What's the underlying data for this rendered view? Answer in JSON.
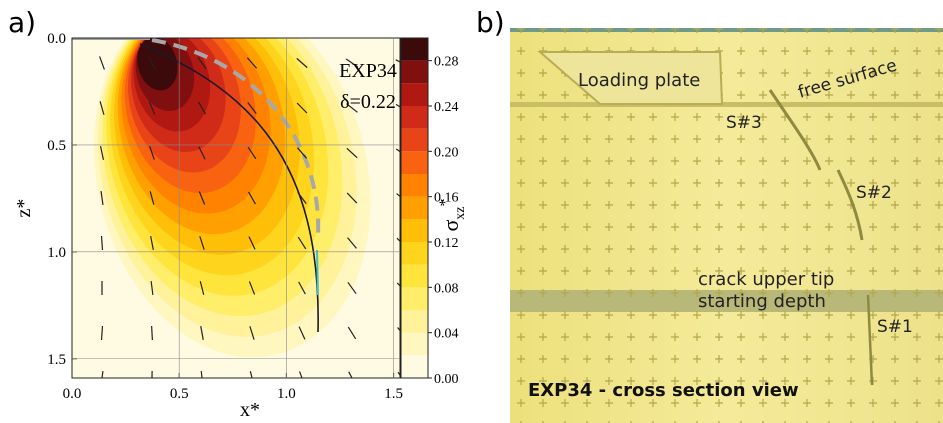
{
  "panel_a": {
    "label": "a)",
    "annotation_exp": "EXP34",
    "annotation_delta": "δ=0.22",
    "xlabel": "x*",
    "ylabel": "z*",
    "xlim": [
      0,
      1.53
    ],
    "ylim": [
      0,
      1.59
    ],
    "xticks": [
      {
        "value": 0,
        "label": "0.0"
      },
      {
        "value": 0.5,
        "label": "0.5"
      },
      {
        "value": 1,
        "label": "1.0"
      },
      {
        "value": 1.5,
        "label": "1.5"
      }
    ],
    "yticks": [
      {
        "value": 0,
        "label": "0.0"
      },
      {
        "value": 0.5,
        "label": "0.5"
      },
      {
        "value": 1,
        "label": "1.0"
      },
      {
        "value": 1.5,
        "label": "1.5"
      }
    ],
    "colorbar": {
      "label": "σ",
      "label_sub": "xz",
      "label_sup": "*",
      "lim": [
        0,
        0.3
      ],
      "ticks": [
        {
          "value": 0,
          "label": "0.00"
        },
        {
          "value": 0.04,
          "label": "0.04"
        },
        {
          "value": 0.08,
          "label": "0.08"
        },
        {
          "value": 0.12,
          "label": "0.12"
        },
        {
          "value": 0.16,
          "label": "0.16"
        },
        {
          "value": 0.2,
          "label": "0.20"
        },
        {
          "value": 0.24,
          "label": "0.24"
        },
        {
          "value": 0.28,
          "label": "0.28"
        }
      ],
      "levels": [
        0,
        0.02,
        0.04,
        0.06,
        0.08,
        0.1,
        0.12,
        0.14,
        0.16,
        0.18,
        0.2,
        0.22,
        0.24,
        0.26,
        0.28,
        0.3
      ],
      "colors": [
        "#fffbe2",
        "#fff6c0",
        "#fff29a",
        "#ffee6a",
        "#ffe43c",
        "#ffd41c",
        "#ffbe08",
        "#ffa000",
        "#ff8200",
        "#f86210",
        "#e84418",
        "#d02a18",
        "#b01812",
        "#801010",
        "#3c0a0a"
      ]
    }
  },
  "panel_b": {
    "label": "b)",
    "loading_plate": "Loading plate",
    "free_surface": "free surface",
    "s3": "S#3",
    "s2": "S#2",
    "s1": "S#1",
    "crack_tip_1": "crack upper tip",
    "crack_tip_2": "starting depth",
    "caption": "EXP34 - cross section view"
  }
}
